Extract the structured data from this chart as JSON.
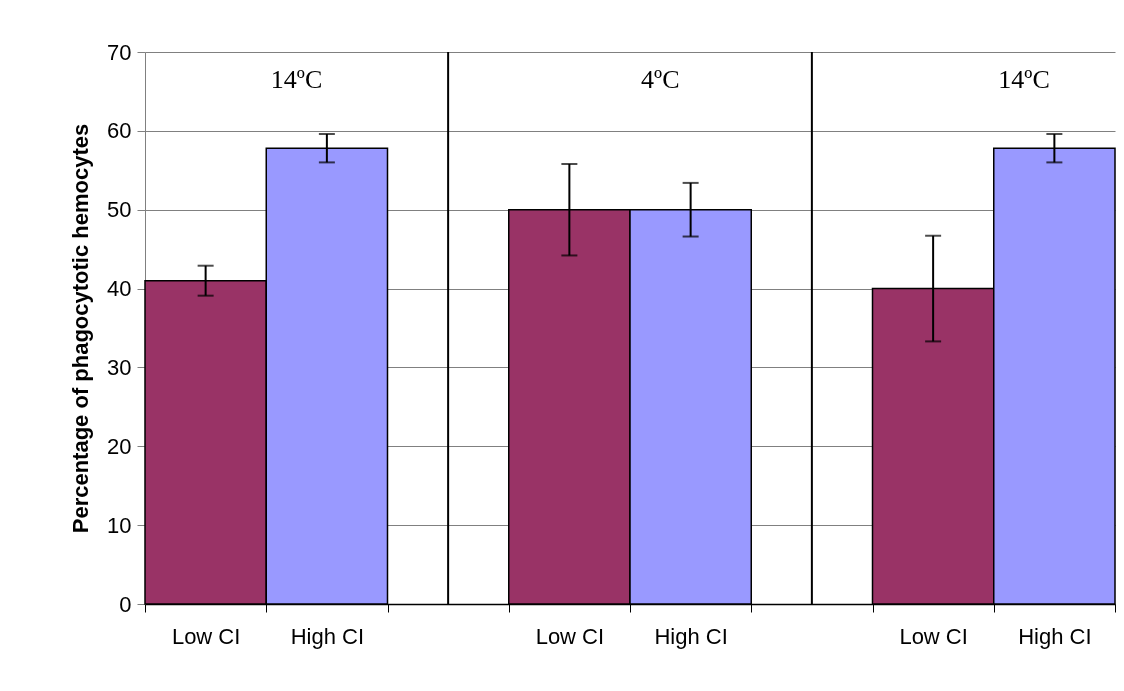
{
  "chart_data": {
    "type": "bar",
    "ylabel": "Percentage of phagocytotic hemocytes",
    "categories": [
      "Low CI",
      "High CI",
      null,
      "Low CI",
      "High CI",
      null,
      "Low CI",
      "High CI"
    ],
    "values": [
      41,
      57.8,
      null,
      50,
      50,
      null,
      40,
      57.8
    ],
    "errors": [
      1.9,
      1.8,
      null,
      5.8,
      3.4,
      null,
      6.7,
      1.8
    ],
    "colors": [
      "#993366",
      "#9999ff",
      null,
      "#993366",
      "#9999ff",
      null,
      "#993366",
      "#9999ff"
    ],
    "ylim": [
      0,
      70
    ],
    "yticks": [
      0,
      10,
      20,
      30,
      40,
      50,
      60,
      70
    ],
    "grid": true,
    "legend": false,
    "annotations": [
      "14ºC",
      "4ºC",
      "14ºC"
    ]
  }
}
